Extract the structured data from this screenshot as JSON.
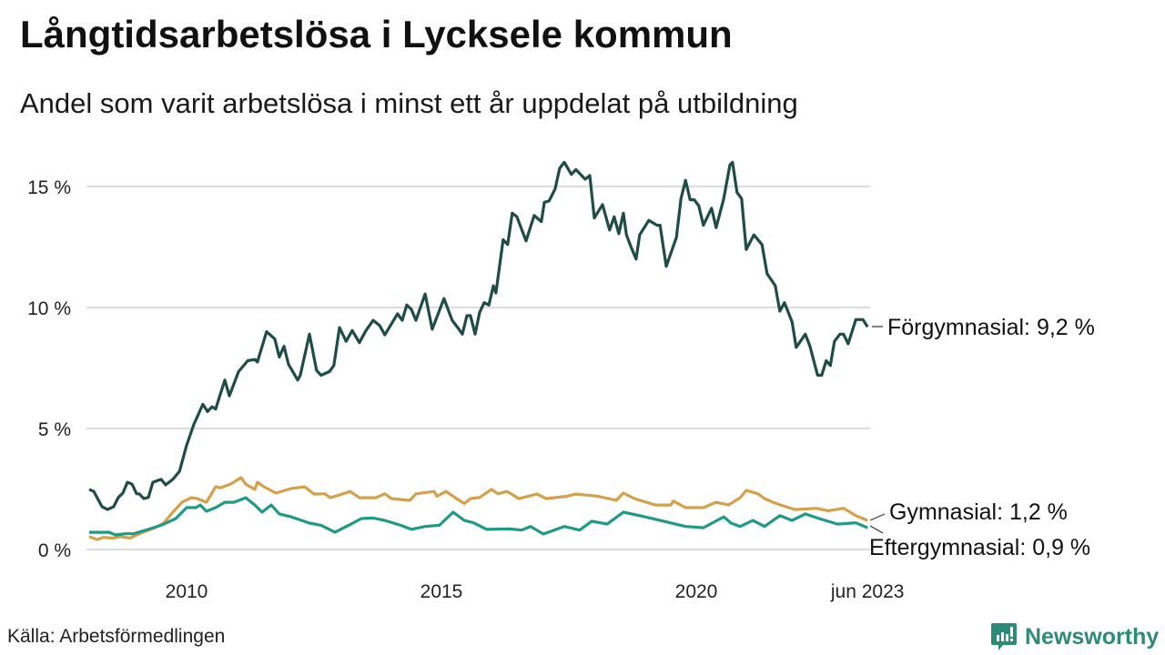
{
  "chart_data": {
    "type": "line",
    "title": "Långtidsarbetslösa i Lycksele kommun",
    "subtitle": "Andel som varit arbetslösa i minst ett år uppdelat på utbildning",
    "xlabel": "",
    "ylabel": "",
    "ylim": [
      0,
      16
    ],
    "xlim": [
      2008.0,
      2023.45
    ],
    "grid": true,
    "yticks": [
      {
        "value": 0,
        "label": "0 %"
      },
      {
        "value": 5,
        "label": "5 %"
      },
      {
        "value": 10,
        "label": "10 %"
      },
      {
        "value": 15,
        "label": "15 %"
      }
    ],
    "xticks": [
      {
        "value": 2010,
        "label": "2010"
      },
      {
        "value": 2015,
        "label": "2015"
      },
      {
        "value": 2020,
        "label": "2020"
      },
      {
        "value": 2023.36,
        "label": "jun 2023"
      }
    ],
    "series": [
      {
        "name": "Förgymnasial",
        "end_label": "Förgymnasial: 9,2 %",
        "color": "#1f4d45",
        "x": [
          2008.09,
          2008.18,
          2008.34,
          2008.45,
          2008.57,
          2008.66,
          2008.75,
          2008.84,
          2008.93,
          2009.02,
          2009.07,
          2009.16,
          2009.25,
          2009.34,
          2009.5,
          2009.59,
          2009.73,
          2009.86,
          2010.0,
          2010.14,
          2010.32,
          2010.41,
          2010.5,
          2010.57,
          2010.75,
          2010.84,
          2011.02,
          2011.2,
          2011.34,
          2011.39,
          2011.57,
          2011.73,
          2011.82,
          2011.91,
          2012.0,
          2012.18,
          2012.23,
          2012.41,
          2012.55,
          2012.64,
          2012.8,
          2012.89,
          2013.0,
          2013.13,
          2013.25,
          2013.39,
          2013.52,
          2013.66,
          2013.79,
          2013.89,
          2014.14,
          2014.23,
          2014.32,
          2014.41,
          2014.5,
          2014.68,
          2014.82,
          2015.05,
          2015.21,
          2015.32,
          2015.41,
          2015.5,
          2015.57,
          2015.66,
          2015.75,
          2015.84,
          2015.93,
          2016.02,
          2016.07,
          2016.21,
          2016.3,
          2016.39,
          2016.48,
          2016.66,
          2016.82,
          2016.96,
          2017.02,
          2017.11,
          2017.23,
          2017.32,
          2017.41,
          2017.55,
          2017.64,
          2017.82,
          2017.91,
          2018.0,
          2018.16,
          2018.3,
          2018.39,
          2018.48,
          2018.57,
          2018.63,
          2018.71,
          2018.82,
          2018.89,
          2019.07,
          2019.23,
          2019.29,
          2019.41,
          2019.61,
          2019.7,
          2019.79,
          2019.88,
          2019.96,
          2020.05,
          2020.14,
          2020.3,
          2020.39,
          2020.54,
          2020.66,
          2020.71,
          2020.8,
          2020.89,
          2020.98,
          2021.13,
          2021.29,
          2021.39,
          2021.55,
          2021.64,
          2021.73,
          2021.88,
          2021.96,
          2022.14,
          2022.23,
          2022.38,
          2022.46,
          2022.55,
          2022.63,
          2022.71,
          2022.82,
          2022.89,
          2022.98,
          2023.13,
          2023.27,
          2023.36
        ],
        "values": [
          2.48,
          2.4,
          1.77,
          1.65,
          1.77,
          2.15,
          2.33,
          2.78,
          2.7,
          2.3,
          2.3,
          2.1,
          2.15,
          2.78,
          2.9,
          2.67,
          2.9,
          3.23,
          4.3,
          5.15,
          6.0,
          5.7,
          5.9,
          5.8,
          7.0,
          6.35,
          7.35,
          7.8,
          7.85,
          7.75,
          9.0,
          8.7,
          7.95,
          8.4,
          7.65,
          7.0,
          7.2,
          8.9,
          7.4,
          7.2,
          7.35,
          7.6,
          9.17,
          8.6,
          9.05,
          8.55,
          9.05,
          9.47,
          9.25,
          8.87,
          9.74,
          9.47,
          10.1,
          9.92,
          9.47,
          10.56,
          9.1,
          10.37,
          9.47,
          9.17,
          8.9,
          9.66,
          9.66,
          8.9,
          9.8,
          10.2,
          10.1,
          10.9,
          10.6,
          12.8,
          12.6,
          13.9,
          13.75,
          12.75,
          13.8,
          13.55,
          14.35,
          14.4,
          14.9,
          15.75,
          16.0,
          15.5,
          15.7,
          15.3,
          15.45,
          13.7,
          14.25,
          13.2,
          13.75,
          13.05,
          13.9,
          13.0,
          12.55,
          12.0,
          13.0,
          13.6,
          13.4,
          13.4,
          11.7,
          12.9,
          14.5,
          15.25,
          14.45,
          14.45,
          14.2,
          13.4,
          14.1,
          13.3,
          14.5,
          15.9,
          16.0,
          14.75,
          14.5,
          12.4,
          13.0,
          12.6,
          11.4,
          10.9,
          9.85,
          10.2,
          9.4,
          8.35,
          8.9,
          8.4,
          7.2,
          7.2,
          7.8,
          7.6,
          8.6,
          8.9,
          8.9,
          8.5,
          9.5,
          9.5,
          9.2
        ]
      },
      {
        "name": "Gymnasial",
        "end_label": "Gymnasial: 1,2 %",
        "color": "#d4a04a",
        "x": [
          2008.09,
          2008.25,
          2008.36,
          2008.54,
          2008.71,
          2008.89,
          2009.14,
          2009.38,
          2009.55,
          2009.73,
          2009.91,
          2010.09,
          2010.21,
          2010.39,
          2010.57,
          2010.66,
          2010.86,
          2011.07,
          2011.16,
          2011.34,
          2011.39,
          2011.52,
          2011.75,
          2012.05,
          2012.32,
          2012.5,
          2012.71,
          2012.82,
          2013.07,
          2013.21,
          2013.39,
          2013.71,
          2013.89,
          2014.02,
          2014.38,
          2014.5,
          2014.86,
          2014.91,
          2015.09,
          2015.27,
          2015.45,
          2015.57,
          2015.75,
          2015.98,
          2016.11,
          2016.29,
          2016.52,
          2016.88,
          2017.05,
          2017.46,
          2017.64,
          2018.07,
          2018.43,
          2018.57,
          2018.79,
          2019.2,
          2019.5,
          2019.55,
          2019.79,
          2020.14,
          2020.39,
          2020.63,
          2020.86,
          2020.98,
          2021.21,
          2021.34,
          2021.57,
          2021.93,
          2022.36,
          2022.59,
          2022.89,
          2023.13,
          2023.36
        ],
        "values": [
          0.53,
          0.41,
          0.5,
          0.47,
          0.53,
          0.47,
          0.71,
          0.9,
          1.09,
          1.54,
          1.95,
          2.14,
          2.1,
          1.95,
          2.59,
          2.55,
          2.7,
          2.97,
          2.7,
          2.48,
          2.78,
          2.59,
          2.33,
          2.52,
          2.59,
          2.29,
          2.3,
          2.14,
          2.3,
          2.4,
          2.14,
          2.14,
          2.3,
          2.1,
          2.03,
          2.3,
          2.4,
          2.2,
          2.4,
          2.14,
          1.9,
          2.1,
          2.15,
          2.48,
          2.3,
          2.4,
          2.1,
          2.29,
          2.1,
          2.2,
          2.29,
          2.2,
          2.03,
          2.33,
          2.1,
          1.84,
          1.84,
          2.0,
          1.73,
          1.73,
          1.95,
          1.84,
          2.14,
          2.44,
          2.3,
          2.1,
          1.9,
          1.65,
          1.7,
          1.6,
          1.7,
          1.4,
          1.2
        ]
      },
      {
        "name": "Eftergymnasial",
        "end_label": "Eftergymnasial: 0,9 %",
        "color": "#1f9a85",
        "x": [
          2008.09,
          2008.48,
          2008.61,
          2008.79,
          2008.96,
          2009.25,
          2009.5,
          2009.79,
          2010.0,
          2010.18,
          2010.27,
          2010.39,
          2010.57,
          2010.75,
          2010.93,
          2011.16,
          2011.34,
          2011.48,
          2011.66,
          2011.82,
          2012.05,
          2012.41,
          2012.64,
          2012.91,
          2013.18,
          2013.43,
          2013.66,
          2013.89,
          2014.2,
          2014.41,
          2014.68,
          2014.96,
          2015.23,
          2015.45,
          2015.63,
          2015.89,
          2016.34,
          2016.57,
          2016.75,
          2017.0,
          2017.41,
          2017.71,
          2017.95,
          2018.25,
          2018.57,
          2018.89,
          2019.2,
          2019.79,
          2020.14,
          2020.54,
          2020.68,
          2020.86,
          2021.11,
          2021.34,
          2021.64,
          2021.88,
          2022.14,
          2022.41,
          2022.77,
          2023.13,
          2023.36
        ],
        "values": [
          0.71,
          0.71,
          0.6,
          0.65,
          0.65,
          0.83,
          1.0,
          1.28,
          1.73,
          1.73,
          1.84,
          1.58,
          1.73,
          1.95,
          1.95,
          2.14,
          1.84,
          1.54,
          1.84,
          1.47,
          1.35,
          1.09,
          1.0,
          0.71,
          1.0,
          1.28,
          1.3,
          1.2,
          1.0,
          0.83,
          0.95,
          1.0,
          1.54,
          1.2,
          1.1,
          0.83,
          0.85,
          0.8,
          0.95,
          0.64,
          0.95,
          0.8,
          1.17,
          1.05,
          1.54,
          1.4,
          1.25,
          0.95,
          0.9,
          1.35,
          1.09,
          0.95,
          1.2,
          0.95,
          1.4,
          1.2,
          1.47,
          1.28,
          1.05,
          1.1,
          0.9
        ]
      }
    ]
  },
  "header": {
    "title": "Långtidsarbetslösa i Lycksele kommun",
    "subtitle": "Andel som varit arbetslösa i minst ett år uppdelat på utbildning"
  },
  "footer": {
    "source": "Källa: Arbetsförmedlingen",
    "logo_text": "Newsworthy",
    "logo_color": "#2e8a78"
  }
}
